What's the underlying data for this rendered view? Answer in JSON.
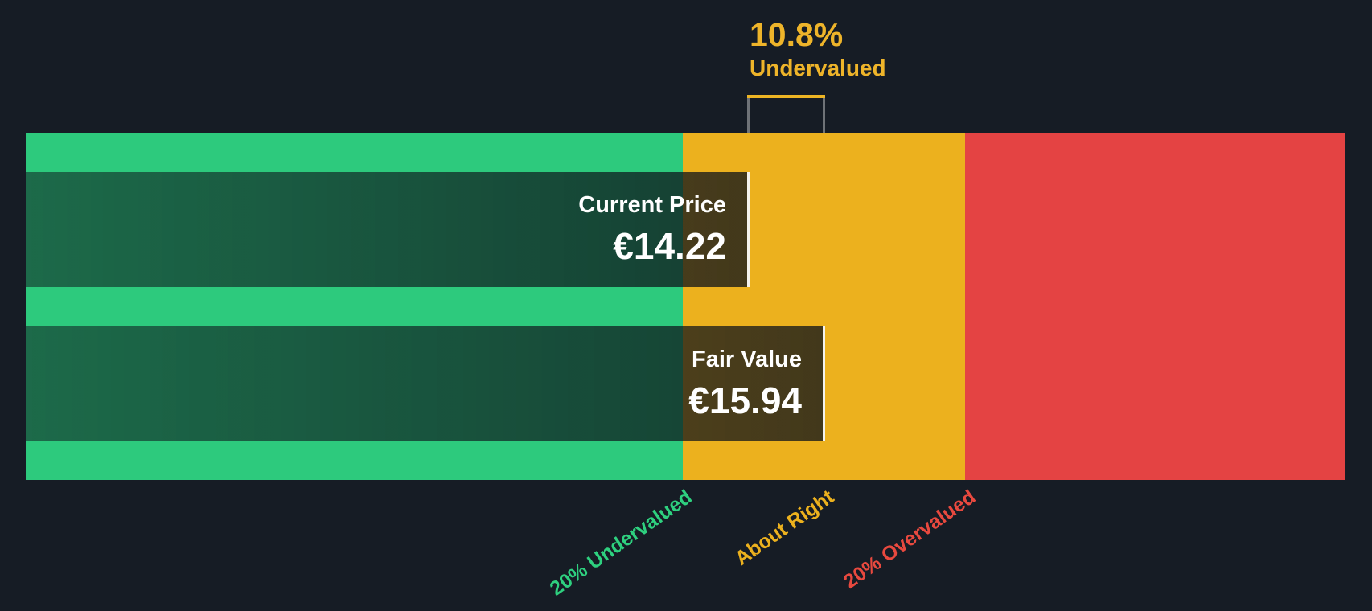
{
  "chart_data": {
    "type": "bar",
    "subtype": "valuation-gauge",
    "orientation": "horizontal",
    "grid": false,
    "legend_position": "bottom-rotated-labels",
    "discount": {
      "percent": "10.8%",
      "status": "Undervalued"
    },
    "bars": [
      {
        "label": "Current Price",
        "value": "€14.22",
        "numeric": 14.22
      },
      {
        "label": "Fair Value",
        "value": "€15.94",
        "numeric": 15.94
      }
    ],
    "zones": [
      {
        "label": "20% Undervalued",
        "color": "#2dca7d"
      },
      {
        "label": "About Right",
        "color": "#ecb11e"
      },
      {
        "label": "20% Overvalued",
        "color": "#e44343"
      }
    ]
  },
  "colors": {
    "background": "#161c25",
    "undervalued_green": "#2dca7d",
    "about_right_amber": "#ecb11e",
    "overvalued_red": "#e44343",
    "discount_text_amber": "#eeb42a",
    "price_text_white": "#ffffff",
    "marker_line_white": "rgba(255,255,255,0.38)"
  }
}
